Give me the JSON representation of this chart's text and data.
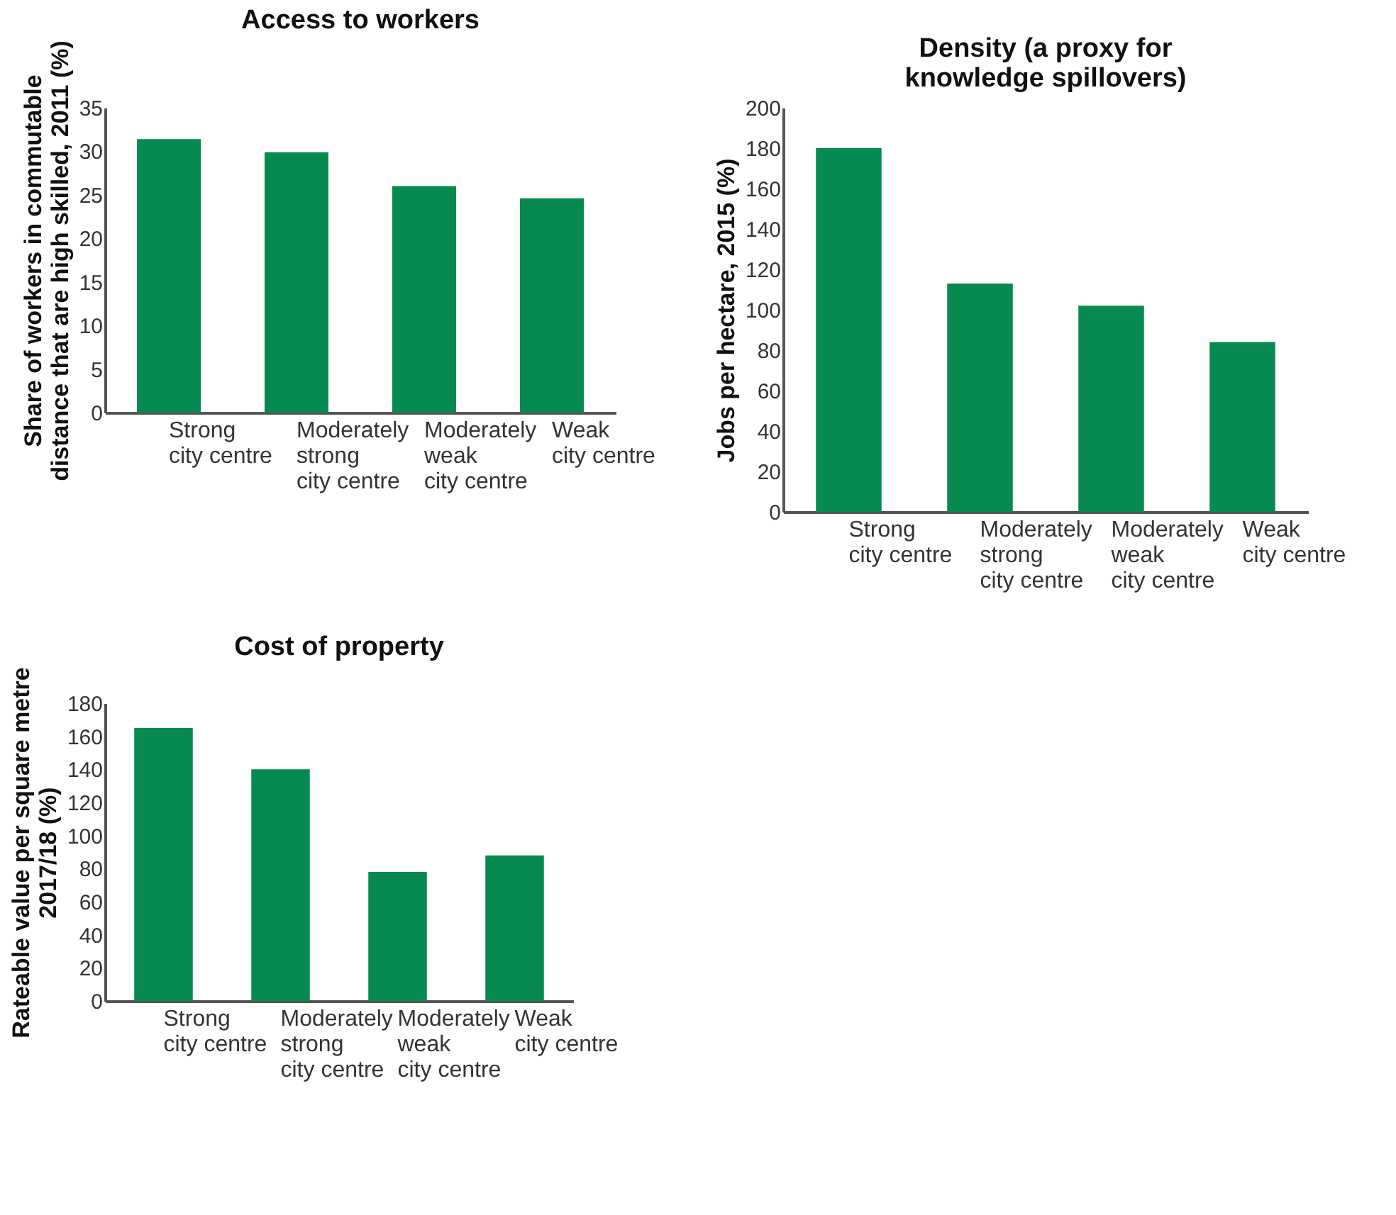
{
  "chart_data": [
    {
      "type": "bar",
      "title": "Access to workers",
      "ylabel": "Share of workers in commutable\ndistance that are high skilled, 2011 (%)",
      "categories": [
        "Strong\ncity centre",
        "Moderately\nstrong\ncity centre",
        "Moderately\nweak\ncity centre",
        "Weak\ncity centre"
      ],
      "values": [
        31.4,
        29.9,
        26.0,
        24.6
      ],
      "color": "#068a50",
      "ylim": [
        0,
        35
      ],
      "yticks": [
        0,
        5,
        10,
        15,
        20,
        25,
        30,
        35
      ]
    },
    {
      "type": "bar",
      "title": "Density (a proxy for\nknowledge spillovers)",
      "ylabel": "Jobs per hectare, 2015 (%)",
      "categories": [
        "Strong\ncity centre",
        "Moderately\nstrong\ncity centre",
        "Moderately\nweak\ncity centre",
        "Weak\ncity centre"
      ],
      "values": [
        180,
        113,
        102,
        84
      ],
      "color": "#068a50",
      "ylim": [
        0,
        200
      ],
      "yticks": [
        0,
        20,
        40,
        60,
        80,
        100,
        120,
        140,
        160,
        180,
        200
      ]
    },
    {
      "type": "bar",
      "title": "Cost of property",
      "ylabel": "Rateable value per square metre\n2017/18 (%)",
      "categories": [
        "Strong\ncity centre",
        "Moderately\nstrong\ncity centre",
        "Moderately\nweak\ncity centre",
        "Weak\ncity centre"
      ],
      "values": [
        165,
        140,
        78,
        88
      ],
      "color": "#068a50",
      "ylim": [
        0,
        180
      ],
      "yticks": [
        0,
        20,
        40,
        60,
        80,
        100,
        120,
        140,
        160,
        180
      ]
    }
  ]
}
